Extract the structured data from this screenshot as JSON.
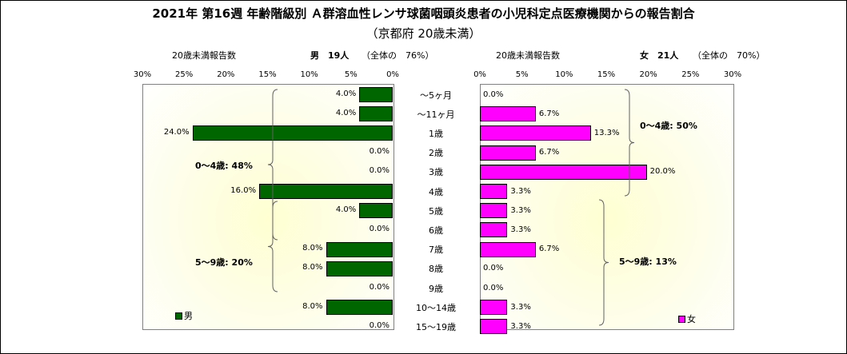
{
  "title": "2021年 第16週 年齢階級別 Ａ群溶血性レンサ球菌咽頭炎患者の小児科定点医療機関からの報告割合",
  "subtitle": "（京都府 20歳未満）",
  "left_header": {
    "axis_caption": "20歳未満報告数",
    "sex_count": "男　19人",
    "share": "（全体の　76%）"
  },
  "right_header": {
    "axis_caption": "20歳未満報告数",
    "sex_count": "女　21人",
    "share": "（全体の　70%）"
  },
  "colors": {
    "male": "#006600",
    "female": "#ff00ff"
  },
  "chart_data": [
    {
      "type": "bar",
      "orientation": "horizontal",
      "direction": "right-to-left",
      "categories": [
        "～5ヶ月",
        "～11ヶ月",
        "1歳",
        "2歳",
        "3歳",
        "4歳",
        "5歳",
        "6歳",
        "7歳",
        "8歳",
        "9歳",
        "10～14歳",
        "15～19歳"
      ],
      "series": [
        {
          "name": "男",
          "values": [
            4.0,
            4.0,
            24.0,
            0.0,
            0.0,
            16.0,
            4.0,
            0.0,
            8.0,
            8.0,
            0.0,
            8.0,
            0.0
          ]
        }
      ],
      "data_labels": [
        "4.0%",
        "4.0%",
        "24.0%",
        "0.0%",
        "0.0%",
        "16.0%",
        "4.0%",
        "0.0%",
        "8.0%",
        "8.0%",
        "0.0%",
        "8.0%",
        "0.0%"
      ],
      "xlim": [
        0,
        30
      ],
      "x_ticks": [
        "30%",
        "25%",
        "20%",
        "15%",
        "10%",
        "5%",
        "0%"
      ],
      "annotations": [
        "0～4歳: 48%",
        "5～9歳: 20%"
      ],
      "legend": "bottom-left",
      "grid": false
    },
    {
      "type": "bar",
      "orientation": "horizontal",
      "direction": "left-to-right",
      "categories": [
        "～5ヶ月",
        "～11ヶ月",
        "1歳",
        "2歳",
        "3歳",
        "4歳",
        "5歳",
        "6歳",
        "7歳",
        "8歳",
        "9歳",
        "10～14歳",
        "15～19歳"
      ],
      "series": [
        {
          "name": "女",
          "values": [
            0.0,
            6.7,
            13.3,
            6.7,
            20.0,
            3.3,
            3.3,
            3.3,
            6.7,
            0.0,
            0.0,
            3.3,
            3.3
          ]
        }
      ],
      "data_labels": [
        "0.0%",
        "6.7%",
        "13.3%",
        "6.7%",
        "20.0%",
        "3.3%",
        "3.3%",
        "3.3%",
        "6.7%",
        "0.0%",
        "0.0%",
        "3.3%",
        "3.3%"
      ],
      "xlim": [
        0,
        30
      ],
      "x_ticks": [
        "0%",
        "5%",
        "10%",
        "15%",
        "20%",
        "25%",
        "30%"
      ],
      "annotations": [
        "0～4歳: 50%",
        "5～9歳: 13%"
      ],
      "legend": "bottom-right",
      "grid": false
    }
  ]
}
